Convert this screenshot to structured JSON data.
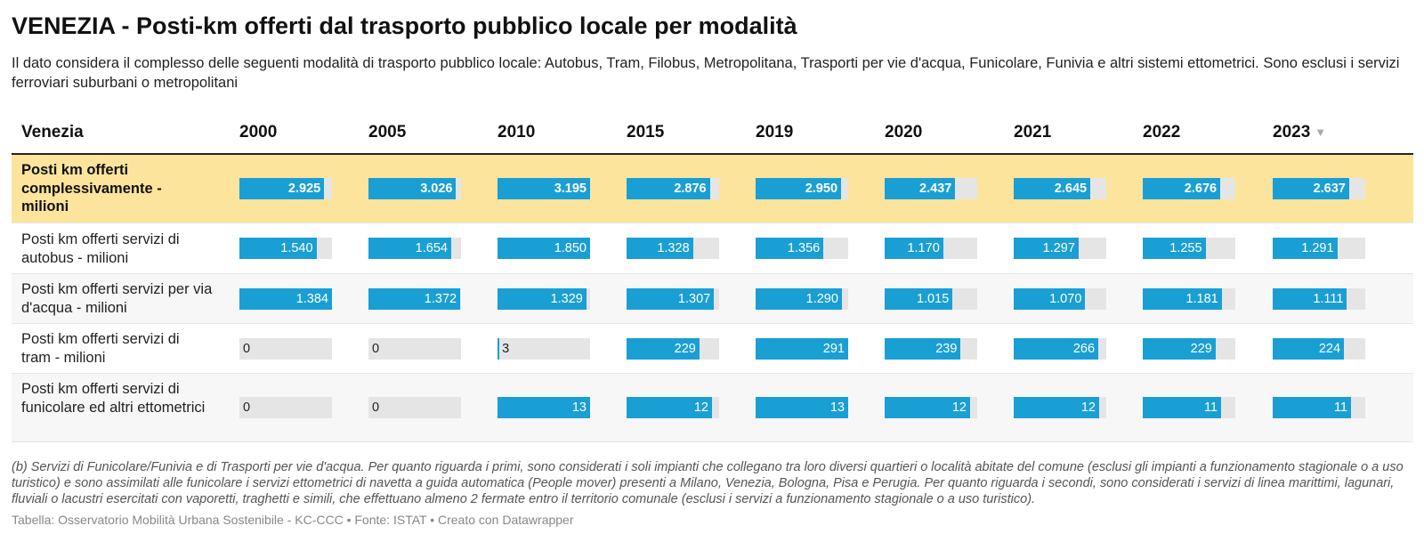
{
  "header": {
    "title": "VENEZIA - Posti-km offerti dal trasporto pubblico locale per modalità",
    "subtitle": "Il dato considera il complesso delle seguenti modalità di trasporto pubblico locale: Autobus, Tram, Filobus, Metropolitana, Trasporti per vie d'acqua, Funicolare, Funivia e altri sistemi ettometrici. Sono esclusi i servizi ferroviari suburbani o metropolitani"
  },
  "table": {
    "first_column_label": "Venezia",
    "sort_icon": "▼",
    "sorted_column": "2023"
  },
  "colors": {
    "bar": "#1a9fd4",
    "track": "#e5e5e5",
    "highlight_row": "#fde49c"
  },
  "chart_data": {
    "type": "table",
    "title": "VENEZIA - Posti-km offerti dal trasporto pubblico locale per modalità",
    "columns": [
      "2000",
      "2005",
      "2010",
      "2015",
      "2019",
      "2020",
      "2021",
      "2022",
      "2023"
    ],
    "rows": [
      {
        "label": "Posti km offerti complessivamente - milioni",
        "highlight": true,
        "values": [
          2925,
          3026,
          3195,
          2876,
          2950,
          2437,
          2645,
          2676,
          2637
        ],
        "display": [
          "2.925",
          "3.026",
          "3.195",
          "2.876",
          "2.950",
          "2.437",
          "2.645",
          "2.676",
          "2.637"
        ]
      },
      {
        "label": "Posti km offerti servizi di autobus - milioni",
        "highlight": false,
        "values": [
          1540,
          1654,
          1850,
          1328,
          1356,
          1170,
          1297,
          1255,
          1291
        ],
        "display": [
          "1.540",
          "1.654",
          "1.850",
          "1.328",
          "1.356",
          "1.170",
          "1.297",
          "1.255",
          "1.291"
        ]
      },
      {
        "label": "Posti km offerti servizi per via d'acqua - milioni",
        "highlight": false,
        "values": [
          1384,
          1372,
          1329,
          1307,
          1290,
          1015,
          1070,
          1181,
          1111
        ],
        "display": [
          "1.384",
          "1.372",
          "1.329",
          "1.307",
          "1.290",
          "1.015",
          "1.070",
          "1.181",
          "1.111"
        ]
      },
      {
        "label": "Posti km offerti servizi di tram - milioni",
        "highlight": false,
        "values": [
          0,
          0,
          3,
          229,
          291,
          239,
          266,
          229,
          224
        ],
        "display": [
          "0",
          "0",
          "3",
          "229",
          "291",
          "239",
          "266",
          "229",
          "224"
        ]
      },
      {
        "label": "Posti km offerti servizi di funicolare ed altri ettometrici",
        "highlight": false,
        "values": [
          0,
          0,
          13,
          12,
          13,
          12,
          12,
          11,
          11
        ],
        "display": [
          "0",
          "0",
          "13",
          "12",
          "13",
          "12",
          "12",
          "11",
          "11"
        ]
      }
    ]
  },
  "footer": {
    "notes": "(b) Servizi di Funicolare/Funivia e di Trasporti per vie d'acqua. Per quanto riguarda i primi, sono considerati i soli impianti che collegano tra loro diversi quartieri o località abitate del comune (esclusi gli impianti a funzionamento stagionale o a uso turistico) e sono assimilati alle funicolare i servizi ettometrici di navetta a guida automatica (People mover) presenti a Milano, Venezia, Bologna, Pisa e Perugia. Per quanto riguarda i secondi, sono considerati i servizi di linea marittimi, lagunari, fluviali o lacustri esercitati con vaporetti, traghetti e simili, che effettuano almeno 2 fermate entro il territorio comunale (esclusi i servizi a funzionamento stagionale o a uso turistico).",
    "credit": "Tabella: Osservatorio Mobilità Urbana Sostenibile - KC-CCC • Fonte: ISTAT • Creato con Datawrapper"
  }
}
